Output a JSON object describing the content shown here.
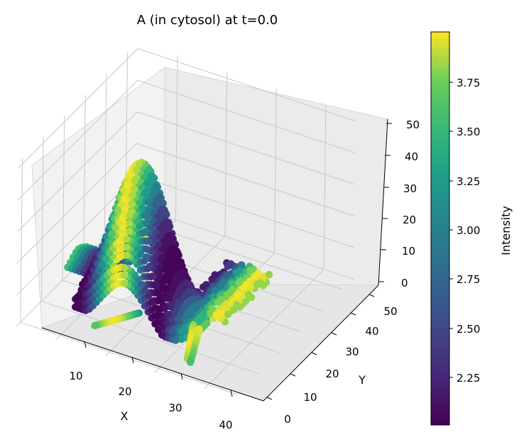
{
  "chart_data": {
    "type": "scatter3d",
    "title": "A (in cytosol) at t=0.0",
    "xlabel": "X",
    "ylabel": "Y",
    "zlabel": "",
    "x_ticks": [
      "10",
      "20",
      "30",
      "40"
    ],
    "y_ticks": [
      "0",
      "10",
      "20",
      "30",
      "40",
      "50"
    ],
    "z_ticks": [
      "0",
      "10",
      "20",
      "30",
      "40",
      "50"
    ],
    "xlim": [
      2,
      46
    ],
    "ylim": [
      -2,
      55
    ],
    "zlim": [
      0,
      52
    ],
    "grid": true,
    "colorbar": {
      "label": "Intensity",
      "colormap": "viridis",
      "range": [
        2.0,
        4.0
      ],
      "ticks": [
        "2.25",
        "2.50",
        "2.75",
        "3.00",
        "3.25",
        "3.50",
        "3.75"
      ]
    },
    "description_values": {
      "structure": "cell surface point cloud: central dome peaking ~47 at X~18, flat lobes at Z~0-5",
      "color_pattern": "intensity varies along X with periodic bands (low ~2.0 dark purple to high ~4.0 yellow)"
    }
  }
}
